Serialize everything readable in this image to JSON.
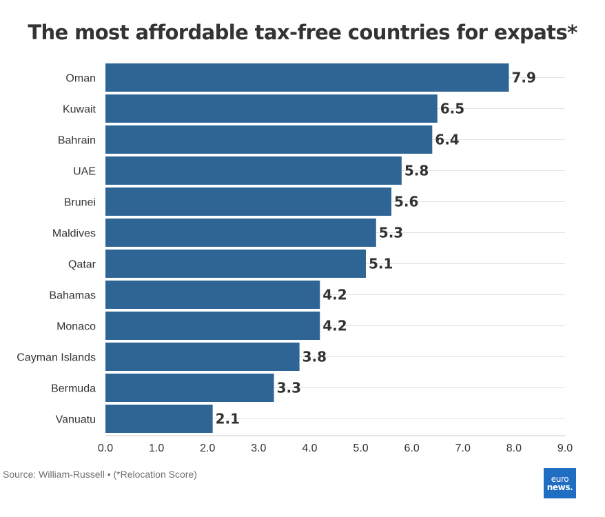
{
  "title": "The most affordable tax-free countries for expats*",
  "source": "Source: William-Russell • (*Relocation Score)",
  "logo": {
    "line1": "euro",
    "line2": "news."
  },
  "colors": {
    "bar": "#2e6594",
    "text": "#333333",
    "grid": "#e3e3e3"
  },
  "chart_data": {
    "type": "bar",
    "orientation": "horizontal",
    "title": "The most affordable tax-free countries for expats*",
    "categories": [
      "Oman",
      "Kuwait",
      "Bahrain",
      "UAE",
      "Brunei",
      "Maldives",
      "Qatar",
      "Bahamas",
      "Monaco",
      "Cayman Islands",
      "Bermuda",
      "Vanuatu"
    ],
    "values": [
      7.9,
      6.5,
      6.4,
      5.8,
      5.6,
      5.3,
      5.1,
      4.2,
      4.2,
      3.8,
      3.3,
      2.1
    ],
    "value_labels": [
      "7.9",
      "6.5",
      "6.4",
      "5.8",
      "5.6",
      "5.3",
      "5.1",
      "4.2",
      "4.2",
      "3.8",
      "3.3",
      "2.1"
    ],
    "xlim": [
      0,
      9
    ],
    "xticks": [
      "0.0",
      "1.0",
      "2.0",
      "3.0",
      "4.0",
      "5.0",
      "6.0",
      "7.0",
      "8.0",
      "9.0"
    ],
    "grid": true,
    "legend": "none"
  }
}
